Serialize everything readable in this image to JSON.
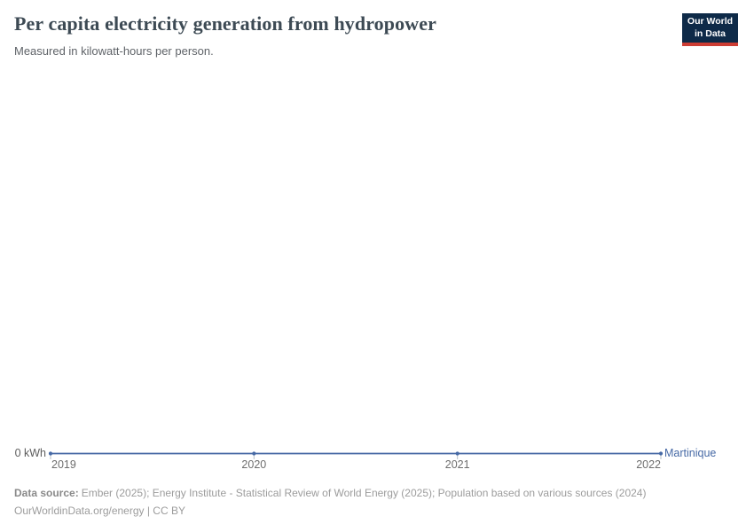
{
  "header": {
    "title": "Per capita electricity generation from hydropower",
    "subtitle": "Measured in kilowatt-hours per person.",
    "logo": {
      "line1": "Our World",
      "line2": "in Data"
    }
  },
  "chart_data": {
    "type": "line",
    "title": "Per capita electricity generation from hydropower",
    "subtitle": "Measured in kilowatt-hours per person.",
    "x": [
      2019,
      2020,
      2021,
      2022
    ],
    "x_tick_labels": [
      "2019",
      "2020",
      "2021",
      "2022"
    ],
    "series": [
      {
        "name": "Martinique",
        "values": [
          0,
          0,
          0,
          0
        ],
        "color": "#4669a5"
      }
    ],
    "y_ticks": [
      "0 kWh"
    ],
    "y_zero_label": "0 kWh",
    "ylim": [
      0,
      0
    ],
    "grid": false,
    "legend_position": "right-of-line-end"
  },
  "footer": {
    "source_label": "Data source:",
    "source_text": "Ember (2025); Energy Institute - Statistical Review of World Energy (2025); Population based on various sources (2024)",
    "license": "OurWorldinData.org/energy | CC BY"
  },
  "colors": {
    "line": "#4669a5",
    "axis_tick": "#b8c1c9",
    "logo_bg": "#0e2a48",
    "logo_red": "#cd3d34"
  }
}
